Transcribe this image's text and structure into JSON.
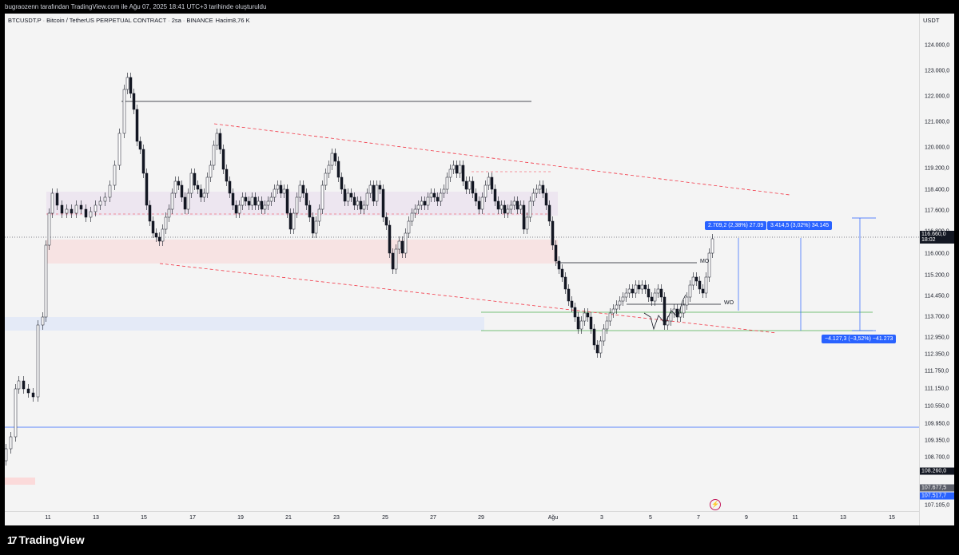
{
  "header": {
    "text": "bugraozenn tarafından TradingView.com ile Ağu 07, 2025 18:41 UTC+3 tarihinde oluşturuldu"
  },
  "symbol": {
    "ticker": "BTCUSDT.P",
    "name": "Bitcoin / TetherUS PERPETUAL CONTRACT",
    "interval": "2sa",
    "exchange": "BINANCE",
    "volume": "Hacim8,76 K"
  },
  "price_axis": {
    "currency": "USDT",
    "ticks": [
      "124.000,0",
      "123.000,0",
      "122.000,0",
      "121.000,0",
      "120.000,0",
      "119.200,0",
      "118.400,0",
      "117.600,0",
      "116.800,0",
      "116.000,0",
      "115.200,0",
      "114.450,0",
      "113.700,0",
      "112.950,0",
      "112.350,0",
      "111.750,0",
      "111.150,0",
      "110.550,0",
      "109.950,0",
      "109.350,0",
      "108.700,0",
      "107.105,0"
    ],
    "current_price": "116.660,0",
    "countdown": "18:02",
    "label_108": "108.260,0",
    "label_107a": "107.677,5",
    "label_107b": "107.517,7"
  },
  "time_axis": {
    "labels": [
      "11",
      "13",
      "15",
      "17",
      "19",
      "21",
      "23",
      "25",
      "27",
      "29",
      "Ağu",
      "3",
      "5",
      "7",
      "9",
      "11",
      "13",
      "15"
    ]
  },
  "measurements": {
    "m1": "2.709,2 (2,38%) 27.09",
    "m2": "3.414,5 (3,02%) 34.145",
    "m3": "−4.127,3 (−3,52%) −41.273"
  },
  "annotations": {
    "mo": "MO",
    "wo": "WO"
  },
  "brand": {
    "name": "TradingView"
  },
  "colors": {
    "up": "#131722",
    "down": "#131722",
    "accent": "#2962ff",
    "resistance_dash": "#f23645",
    "support": "#4caf50"
  }
}
